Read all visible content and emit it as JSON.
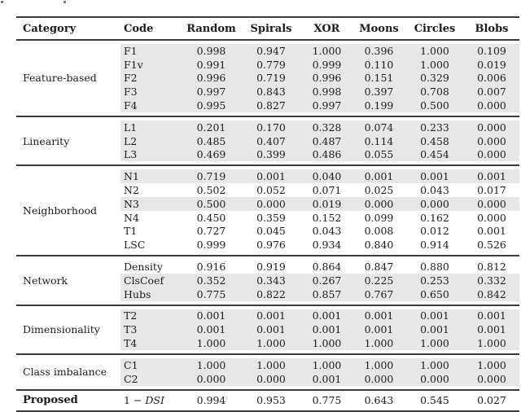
{
  "colors": {
    "background": "#ffffff",
    "row_shade": "#e7e7e7",
    "rule": "#3b3b3b",
    "text": "#1c1c1c"
  },
  "table": {
    "headers": [
      "Category",
      "Code",
      "Random",
      "Spirals",
      "XOR",
      "Moons",
      "Circles",
      "Blobs"
    ],
    "sections": [
      {
        "category": "Feature-based",
        "bold": false,
        "rows": [
          {
            "code": "F1",
            "shaded": true,
            "values": [
              "0.998",
              "0.947",
              "1.000",
              "0.396",
              "1.000",
              "0.109"
            ]
          },
          {
            "code": "F1v",
            "shaded": true,
            "values": [
              "0.991",
              "0.779",
              "0.999",
              "0.110",
              "1.000",
              "0.019"
            ]
          },
          {
            "code": "F2",
            "shaded": true,
            "values": [
              "0.996",
              "0.719",
              "0.996",
              "0.151",
              "0.329",
              "0.006"
            ]
          },
          {
            "code": "F3",
            "shaded": true,
            "values": [
              "0.997",
              "0.843",
              "0.998",
              "0.397",
              "0.708",
              "0.007"
            ]
          },
          {
            "code": "F4",
            "shaded": true,
            "values": [
              "0.995",
              "0.827",
              "0.997",
              "0.199",
              "0.500",
              "0.000"
            ]
          }
        ]
      },
      {
        "category": "Linearity",
        "bold": false,
        "rows": [
          {
            "code": "L1",
            "shaded": true,
            "values": [
              "0.201",
              "0.170",
              "0.328",
              "0.074",
              "0.233",
              "0.000"
            ]
          },
          {
            "code": "L2",
            "shaded": true,
            "values": [
              "0.485",
              "0.407",
              "0.487",
              "0.114",
              "0.458",
              "0.000"
            ]
          },
          {
            "code": "L3",
            "shaded": true,
            "values": [
              "0.469",
              "0.399",
              "0.486",
              "0.055",
              "0.454",
              "0.000"
            ]
          }
        ]
      },
      {
        "category": "Neighborhood",
        "bold": false,
        "rows": [
          {
            "code": "N1",
            "shaded": true,
            "values": [
              "0.719",
              "0.001",
              "0.040",
              "0.001",
              "0.001",
              "0.001"
            ]
          },
          {
            "code": "N2",
            "shaded": false,
            "values": [
              "0.502",
              "0.052",
              "0.071",
              "0.025",
              "0.043",
              "0.017"
            ]
          },
          {
            "code": "N3",
            "shaded": true,
            "values": [
              "0.500",
              "0.000",
              "0.019",
              "0.000",
              "0.000",
              "0.000"
            ]
          },
          {
            "code": "N4",
            "shaded": false,
            "values": [
              "0.450",
              "0.359",
              "0.152",
              "0.099",
              "0.162",
              "0.000"
            ]
          },
          {
            "code": "T1",
            "shaded": false,
            "values": [
              "0.727",
              "0.045",
              "0.043",
              "0.008",
              "0.012",
              "0.001"
            ]
          },
          {
            "code": "LSC",
            "shaded": false,
            "values": [
              "0.999",
              "0.976",
              "0.934",
              "0.840",
              "0.914",
              "0.526"
            ]
          }
        ]
      },
      {
        "category": "Network",
        "bold": false,
        "rows": [
          {
            "code": "Density",
            "shaded": false,
            "values": [
              "0.916",
              "0.919",
              "0.864",
              "0.847",
              "0.880",
              "0.812"
            ]
          },
          {
            "code": "ClsCoef",
            "shaded": true,
            "values": [
              "0.352",
              "0.343",
              "0.267",
              "0.225",
              "0.253",
              "0.332"
            ]
          },
          {
            "code": "Hubs",
            "shaded": true,
            "values": [
              "0.775",
              "0.822",
              "0.857",
              "0.767",
              "0.650",
              "0.842"
            ]
          }
        ]
      },
      {
        "category": "Dimensionality",
        "bold": false,
        "rows": [
          {
            "code": "T2",
            "shaded": true,
            "values": [
              "0.001",
              "0.001",
              "0.001",
              "0.001",
              "0.001",
              "0.001"
            ]
          },
          {
            "code": "T3",
            "shaded": true,
            "values": [
              "0.001",
              "0.001",
              "0.001",
              "0.001",
              "0.001",
              "0.001"
            ]
          },
          {
            "code": "T4",
            "shaded": true,
            "values": [
              "1.000",
              "1.000",
              "1.000",
              "1.000",
              "1.000",
              "1.000"
            ]
          }
        ]
      },
      {
        "category": "Class imbalance",
        "bold": false,
        "rows": [
          {
            "code": "C1",
            "shaded": true,
            "values": [
              "1.000",
              "1.000",
              "1.000",
              "1.000",
              "1.000",
              "1.000"
            ]
          },
          {
            "code": "C2",
            "shaded": true,
            "values": [
              "0.000",
              "0.000",
              "0.001",
              "0.000",
              "0.000",
              "0.000"
            ]
          }
        ]
      },
      {
        "category": "Proposed",
        "bold": true,
        "rows": [
          {
            "code_parts": [
              {
                "text": "1 − ",
                "italic": false
              },
              {
                "text": "DSI",
                "italic": true
              }
            ],
            "shaded": false,
            "values": [
              "0.994",
              "0.953",
              "0.775",
              "0.643",
              "0.545",
              "0.027"
            ]
          }
        ]
      }
    ]
  }
}
